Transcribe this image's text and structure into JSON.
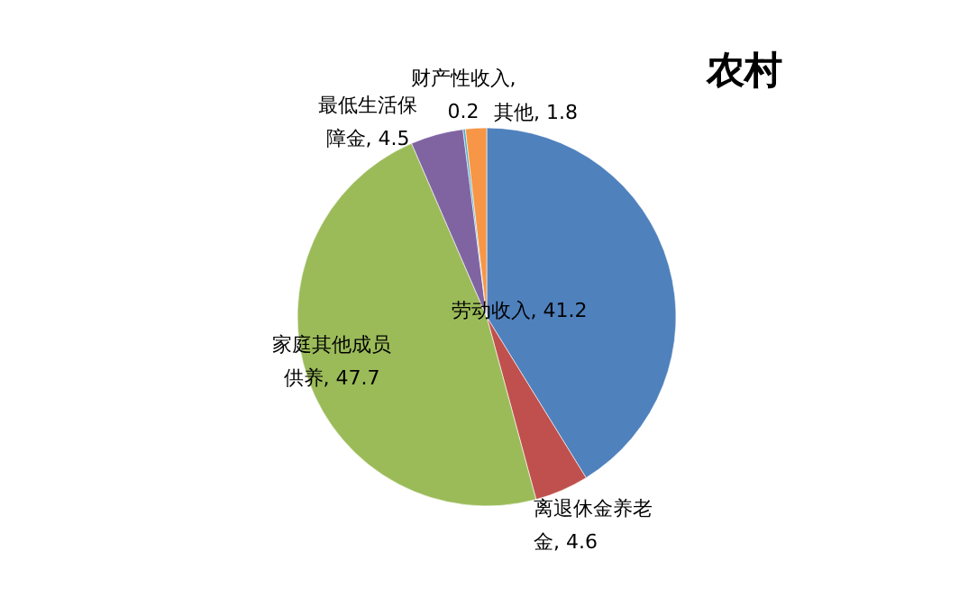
{
  "chart_data": {
    "type": "pie",
    "title": "农村",
    "categories": [
      "劳动收入",
      "离退休金养老金",
      "家庭其他成员供养",
      "最低生活保障金",
      "财产性收入",
      "其他"
    ],
    "values": [
      41.2,
      4.6,
      47.7,
      4.5,
      0.2,
      1.8
    ],
    "colors": [
      "#4f81bd",
      "#c0504d",
      "#9bbb59",
      "#8064a2",
      "#4bacc6",
      "#f79646"
    ],
    "value_labels": [
      ", 41.2",
      ", 4.6",
      ", 47.7",
      ", 4.5",
      ", 0.2",
      ", 1.8"
    ]
  }
}
